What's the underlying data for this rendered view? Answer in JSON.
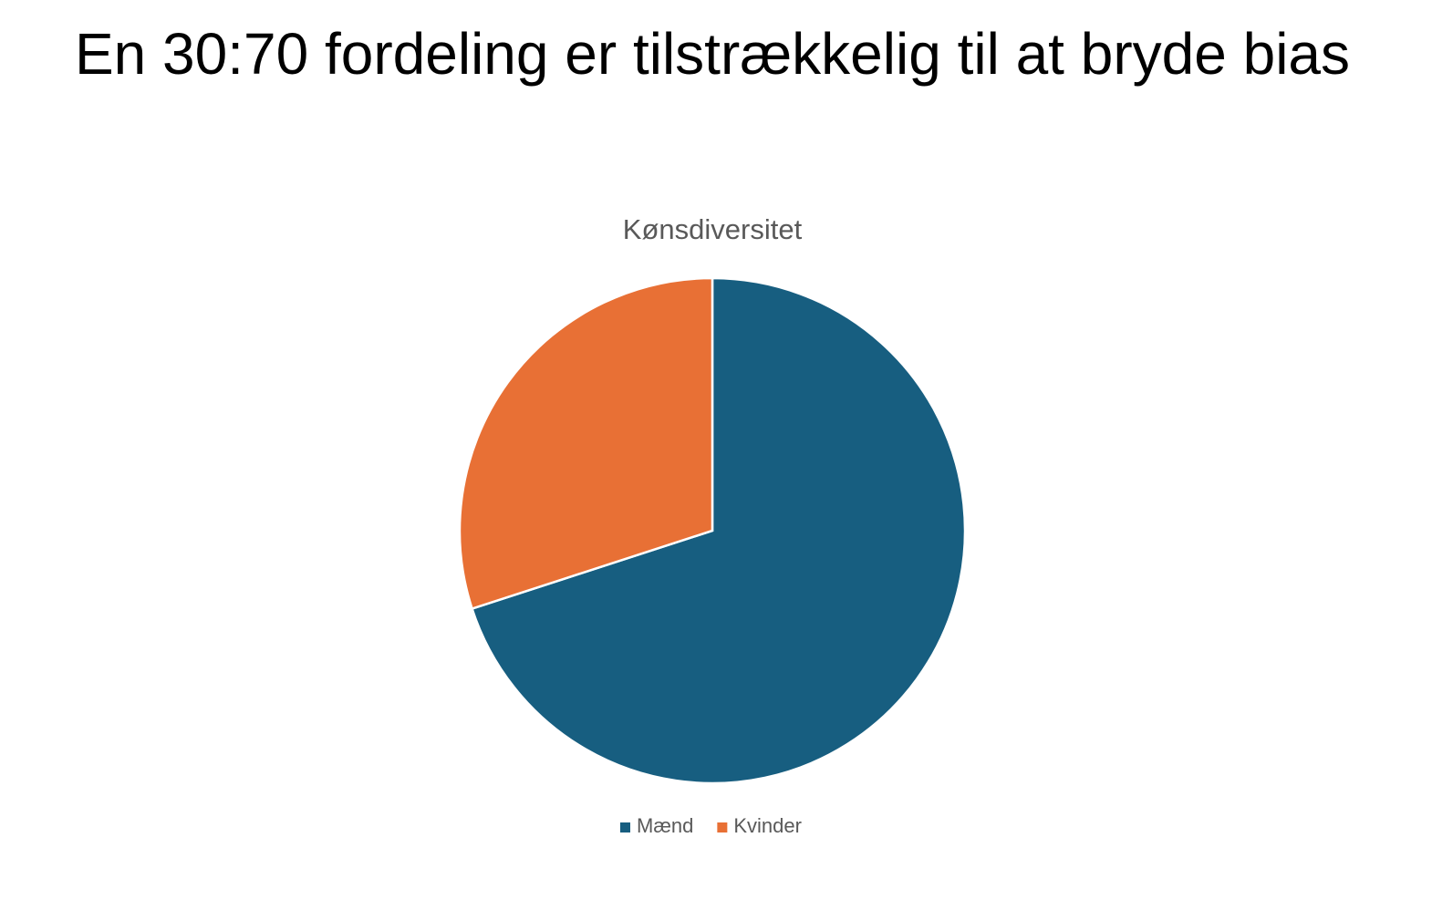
{
  "slide_title": "En 30:70 fordeling er tilstrækkelig til at bryde bias",
  "chart_data": {
    "type": "pie",
    "title": "Kønsdiversitet",
    "categories": [
      "Mænd",
      "Kvinder"
    ],
    "values": [
      70,
      30
    ],
    "colors": [
      "#175e80",
      "#e87035"
    ],
    "legend": "bottom"
  }
}
